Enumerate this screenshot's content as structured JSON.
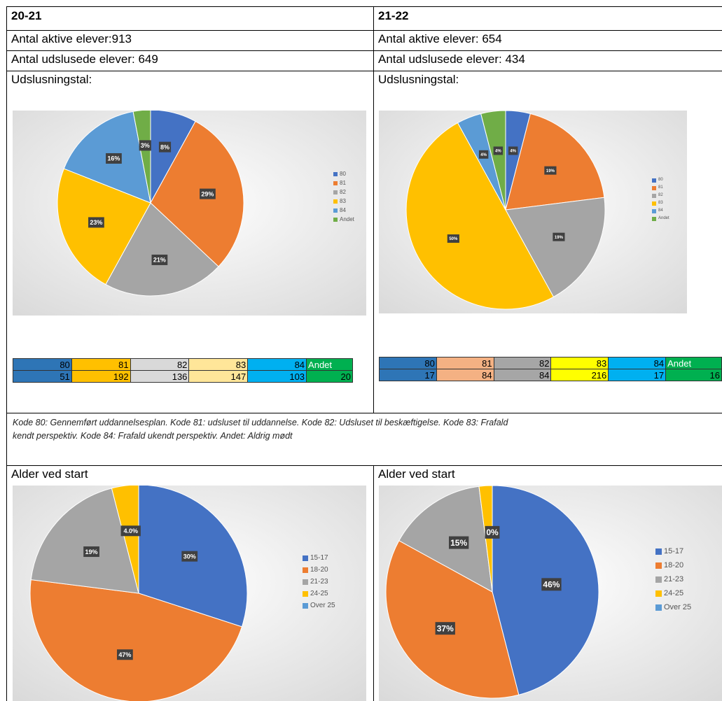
{
  "left": {
    "year": "20-21",
    "active": "Antal aktive elever:913",
    "exited": "Antal udslusede elever: 649",
    "udsl_title": "Udslusningstal:",
    "alder_title": "Alder ved start"
  },
  "right": {
    "year": "21-22",
    "active": "Antal aktive elever: 654",
    "exited": "Antal udslusede elever: 434",
    "udsl_title": "Udslusningstal:",
    "alder_title": "Alder ved start"
  },
  "note": {
    "line1": "Kode 80: Gennemført uddannelsesplan. Kode 81: udsluset til uddannelse. Kode 82: Udsluset til beskæftigelse. Kode 83: Frafald",
    "line2": "kendt perspektiv. Kode 84: Frafald ukendt perspektiv. Andet: Aldrig mødt"
  },
  "colors": {
    "blue": "#4472C4",
    "orange": "#ED7D31",
    "gray": "#A5A5A5",
    "yellow": "#FFC000",
    "lightblue": "#5B9BD5",
    "green": "#70AD47"
  },
  "chart_data": [
    {
      "type": "pie",
      "legend_position": "right",
      "categories": [
        "80",
        "81",
        "82",
        "83",
        "84",
        "Andet"
      ],
      "values": [
        8,
        29,
        21,
        23,
        16,
        3
      ],
      "labels": [
        "8%",
        "29%",
        "21%",
        "23%",
        "16%",
        "3%"
      ]
    },
    {
      "type": "pie",
      "legend_position": "right",
      "categories": [
        "80",
        "81",
        "82",
        "83",
        "84",
        "Andet"
      ],
      "values": [
        4,
        19,
        19,
        50,
        4,
        4
      ],
      "labels": [
        "4%",
        "19%",
        "19%",
        "50%",
        "4%",
        "4%"
      ]
    },
    {
      "type": "pie",
      "legend_position": "right",
      "categories": [
        "15-17",
        "18-20",
        "21-23",
        "24-25",
        "Over 25"
      ],
      "values": [
        30,
        47,
        19,
        4,
        0
      ],
      "labels": [
        "30%",
        "47%",
        "19%",
        "4.0%",
        ""
      ]
    },
    {
      "type": "pie",
      "legend_position": "right",
      "categories": [
        "15-17",
        "18-20",
        "21-23",
        "24-25",
        "Over 25"
      ],
      "values": [
        46,
        37,
        15,
        2,
        0
      ],
      "labels": [
        "46%",
        "37%",
        "15%",
        "",
        "0%"
      ]
    },
    {
      "type": "table",
      "headers": [
        "80",
        "81",
        "82",
        "83",
        "84",
        "Andet"
      ],
      "values": [
        "51",
        "192",
        "136",
        "147",
        "103",
        "20"
      ]
    },
    {
      "type": "table",
      "headers": [
        "80",
        "81",
        "82",
        "83",
        "84",
        "Andet"
      ],
      "values": [
        "17",
        "84",
        "84",
        "216",
        "17",
        "16"
      ]
    }
  ]
}
